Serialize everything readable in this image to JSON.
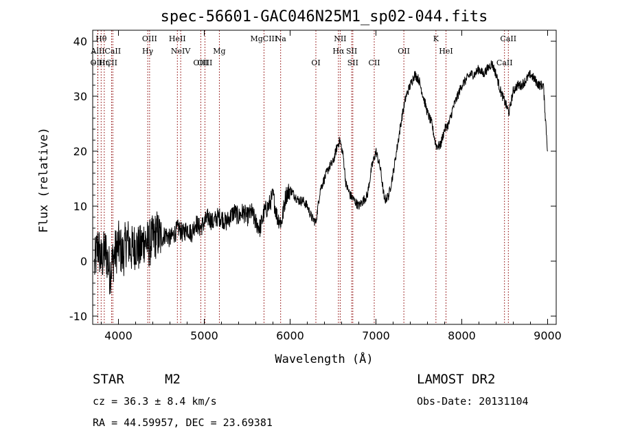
{
  "chart_data": {
    "type": "line",
    "title": "spec-56601-GAC046N25M1_sp02-044.fits",
    "xlabel": "Wavelength (Å)",
    "ylabel": "Flux (relative)",
    "xlim": [
      3700,
      9100
    ],
    "ylim": [
      -11.5,
      42
    ],
    "xticks": [
      4000,
      5000,
      6000,
      7000,
      8000,
      9000
    ],
    "yticks": [
      -10,
      0,
      10,
      20,
      30,
      40
    ],
    "grid": false,
    "line_color": "#000000",
    "marker_color": "#8b0000",
    "series": [
      {
        "x": [
          3720,
          3760,
          3800,
          3850,
          3900,
          3950,
          4000,
          4050,
          4100,
          4150,
          4200,
          4250,
          4300,
          4350,
          4400,
          4450,
          4500,
          4550,
          4600,
          4650,
          4700,
          4750,
          4800,
          4850,
          4900,
          4950,
          5000,
          5050,
          5100,
          5150,
          5200,
          5250,
          5300,
          5350,
          5400,
          5450,
          5500,
          5550,
          5600,
          5650,
          5700,
          5750,
          5800,
          5850,
          5900,
          5950,
          6000,
          6050,
          6100,
          6150,
          6200,
          6250,
          6300,
          6350,
          6400,
          6450,
          6500,
          6550,
          6580,
          6620,
          6650,
          6700,
          6750,
          6800,
          6850,
          6900,
          6950,
          7000,
          7050,
          7100,
          7150,
          7200,
          7250,
          7300,
          7350,
          7400,
          7450,
          7500,
          7550,
          7600,
          7650,
          7700,
          7750,
          7800,
          7850,
          7900,
          7950,
          8000,
          8050,
          8100,
          8150,
          8200,
          8250,
          8300,
          8350,
          8400,
          8450,
          8500,
          8550,
          8600,
          8650,
          8700,
          8750,
          8800,
          8850,
          8900,
          8950,
          9000
        ],
        "y": [
          -1,
          3,
          0,
          2,
          -2,
          1,
          3,
          1,
          4,
          2,
          3,
          2,
          4,
          3,
          4,
          5,
          4,
          5,
          4,
          5,
          6,
          5,
          6,
          5,
          7,
          6,
          7,
          8,
          7,
          8,
          8,
          7,
          8,
          9,
          8,
          9,
          8,
          9,
          7,
          6,
          9,
          10,
          12,
          8,
          7,
          12,
          13,
          12,
          11,
          11,
          10,
          8,
          7,
          13,
          15,
          17,
          18,
          21,
          22,
          19,
          14,
          12,
          11,
          10,
          11,
          12,
          17,
          20,
          17,
          11,
          12,
          16,
          21,
          26,
          30,
          32,
          34,
          33,
          30,
          27,
          25,
          21,
          21,
          24,
          25,
          28,
          30,
          32,
          33,
          34,
          34,
          35,
          34,
          35,
          36,
          34,
          31,
          29,
          27,
          31,
          32,
          32,
          33,
          34,
          33,
          32,
          32,
          20
        ]
      }
    ],
    "spectral_lines": [
      {
        "label": "Hθ",
        "x": 3798,
        "row": 0
      },
      {
        "label": "AlII",
        "x": 3760,
        "row": 1
      },
      {
        "label": "OIII",
        "x": 3760,
        "row": 2
      },
      {
        "label": "Hη",
        "x": 3835,
        "row": 2
      },
      {
        "label": "CII",
        "x": 3919,
        "row": 2
      },
      {
        "label": "CaII",
        "x": 3934,
        "row": 1
      },
      {
        "label": "OIII",
        "x": 4363,
        "row": 0
      },
      {
        "label": "Hγ",
        "x": 4341,
        "row": 1
      },
      {
        "label": "HeII",
        "x": 4686,
        "row": 0
      },
      {
        "label": "NeIV",
        "x": 4725,
        "row": 1
      },
      {
        "label": "OIII",
        "x": 4959,
        "row": 2
      },
      {
        "label": "OIII",
        "x": 5007,
        "row": 2
      },
      {
        "label": "Mg",
        "x": 5175,
        "row": 1
      },
      {
        "label": "MgCIII",
        "x": 5695,
        "row": 0
      },
      {
        "label": "Na",
        "x": 5890,
        "row": 0
      },
      {
        "label": "OI",
        "x": 6300,
        "row": 2
      },
      {
        "label": "NII",
        "x": 6583,
        "row": 0
      },
      {
        "label": "Hα",
        "x": 6563,
        "row": 1
      },
      {
        "label": "SII",
        "x": 6717,
        "row": 1
      },
      {
        "label": "SII",
        "x": 6731,
        "row": 2
      },
      {
        "label": "CII",
        "x": 6980,
        "row": 2
      },
      {
        "label": "OII",
        "x": 7325,
        "row": 1
      },
      {
        "label": "K",
        "x": 7699,
        "row": 0
      },
      {
        "label": "HeI",
        "x": 7816,
        "row": 1
      },
      {
        "label": "CaII",
        "x": 8542,
        "row": 0
      },
      {
        "label": "CaII",
        "x": 8498,
        "row": 2
      }
    ]
  },
  "info": {
    "class_label": "STAR",
    "subclass": "M2",
    "survey": "LAMOST DR2",
    "cz_text": "cz = 36.3 ± 8.4 km/s",
    "obs_date": "Obs-Date: 20131104",
    "coords_text": "RA =  44.59957, DEC =  23.69381"
  }
}
